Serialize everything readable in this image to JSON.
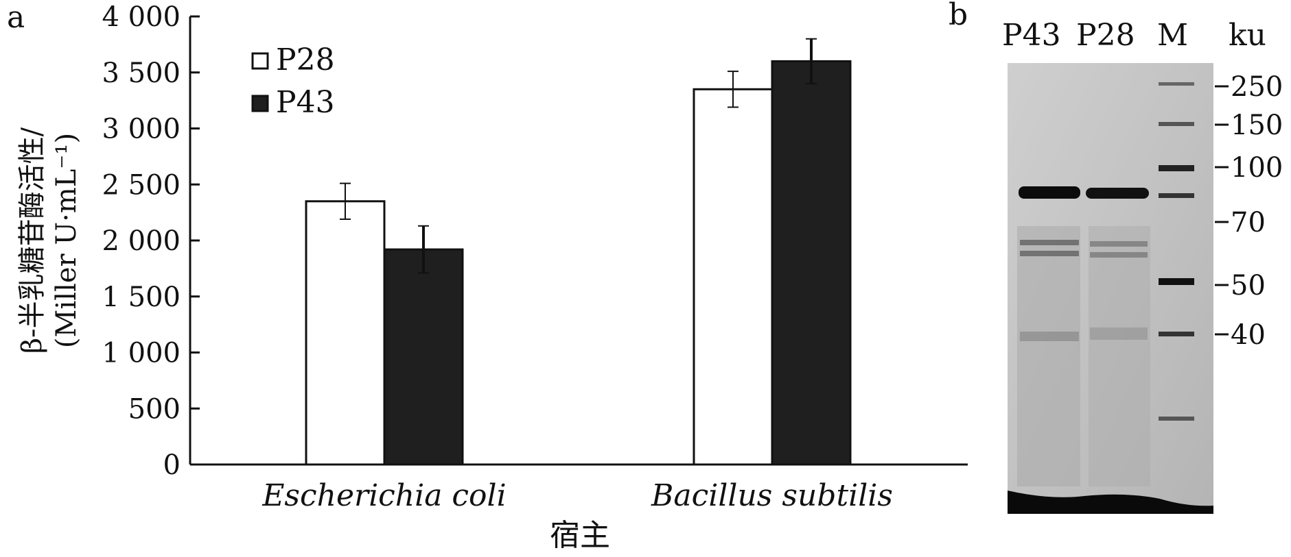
{
  "panels": {
    "a_label": "a",
    "b_label": "b"
  },
  "chart_data": {
    "type": "bar",
    "categories": [
      "Escherichia coli",
      "Bacillus subtilis"
    ],
    "series": [
      {
        "name": "P28",
        "values": [
          2350,
          3350
        ],
        "errors": [
          160,
          160
        ],
        "color": "#ffffff"
      },
      {
        "name": "P43",
        "values": [
          1920,
          3600
        ],
        "errors": [
          210,
          200
        ],
        "color": "#1f1f1f"
      }
    ],
    "xlabel": "宿主",
    "ylabel": [
      "β-半乳糖苷酶活性/",
      "(Miller U·mL⁻¹)"
    ],
    "ylim": [
      0,
      4000
    ],
    "yticks": [
      0,
      500,
      1000,
      1500,
      2000,
      2500,
      3000,
      3500,
      4000
    ],
    "ytick_labels": [
      "0",
      "500",
      "1 000",
      "1 500",
      "2 000",
      "2 500",
      "3 000",
      "3 500",
      "4 000"
    ],
    "legend_position": "top-left",
    "grid": false
  },
  "gel": {
    "lanes": [
      "P43",
      "P28",
      "M"
    ],
    "unit": "ku",
    "marker_sizes": [
      "250",
      "150",
      "100",
      "70",
      "50",
      "40"
    ]
  }
}
